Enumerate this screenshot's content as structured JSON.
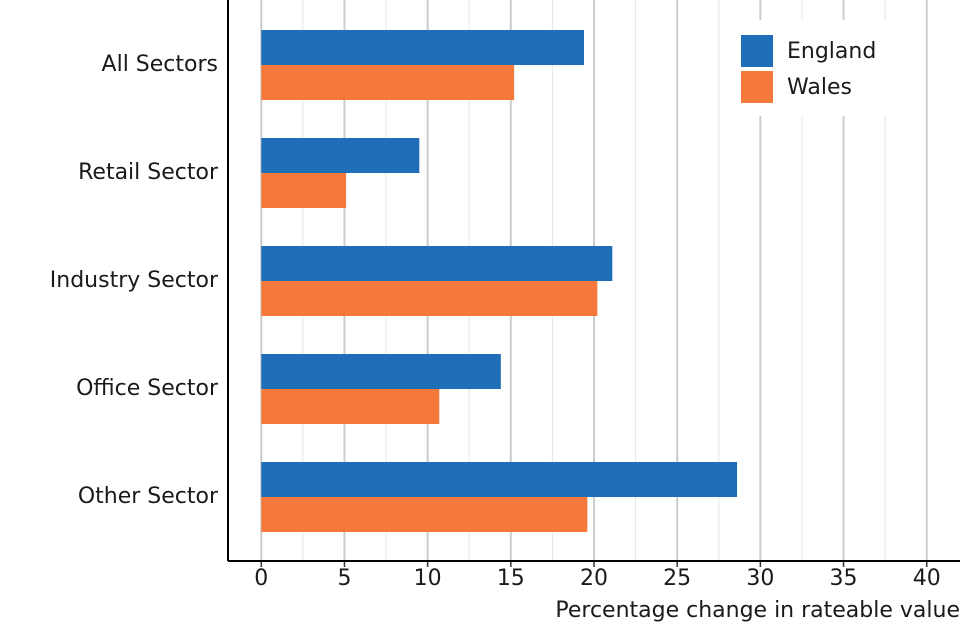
{
  "chart_data": {
    "type": "barh",
    "xlabel": "Percentage change in rateable value",
    "categories": [
      "All Sectors",
      "Retail Sector",
      "Industry Sector",
      "Office Sector",
      "Other Sector"
    ],
    "series": [
      {
        "name": "England",
        "color": "#1f6eb8",
        "values": [
          19.4,
          9.5,
          21.1,
          14.4,
          28.6
        ]
      },
      {
        "name": "Wales",
        "color": "#f5793a",
        "values": [
          15.2,
          5.1,
          20.2,
          10.7,
          19.6
        ]
      }
    ],
    "xlim": [
      -2,
      42
    ],
    "xticks": [
      0,
      5,
      10,
      15,
      20,
      25,
      30,
      35,
      40
    ],
    "minor_xticks": [
      2.5,
      7.5,
      12.5,
      17.5,
      22.5,
      27.5,
      32.5,
      37.5,
      42.5
    ],
    "grid": true,
    "legend": "upper right"
  }
}
